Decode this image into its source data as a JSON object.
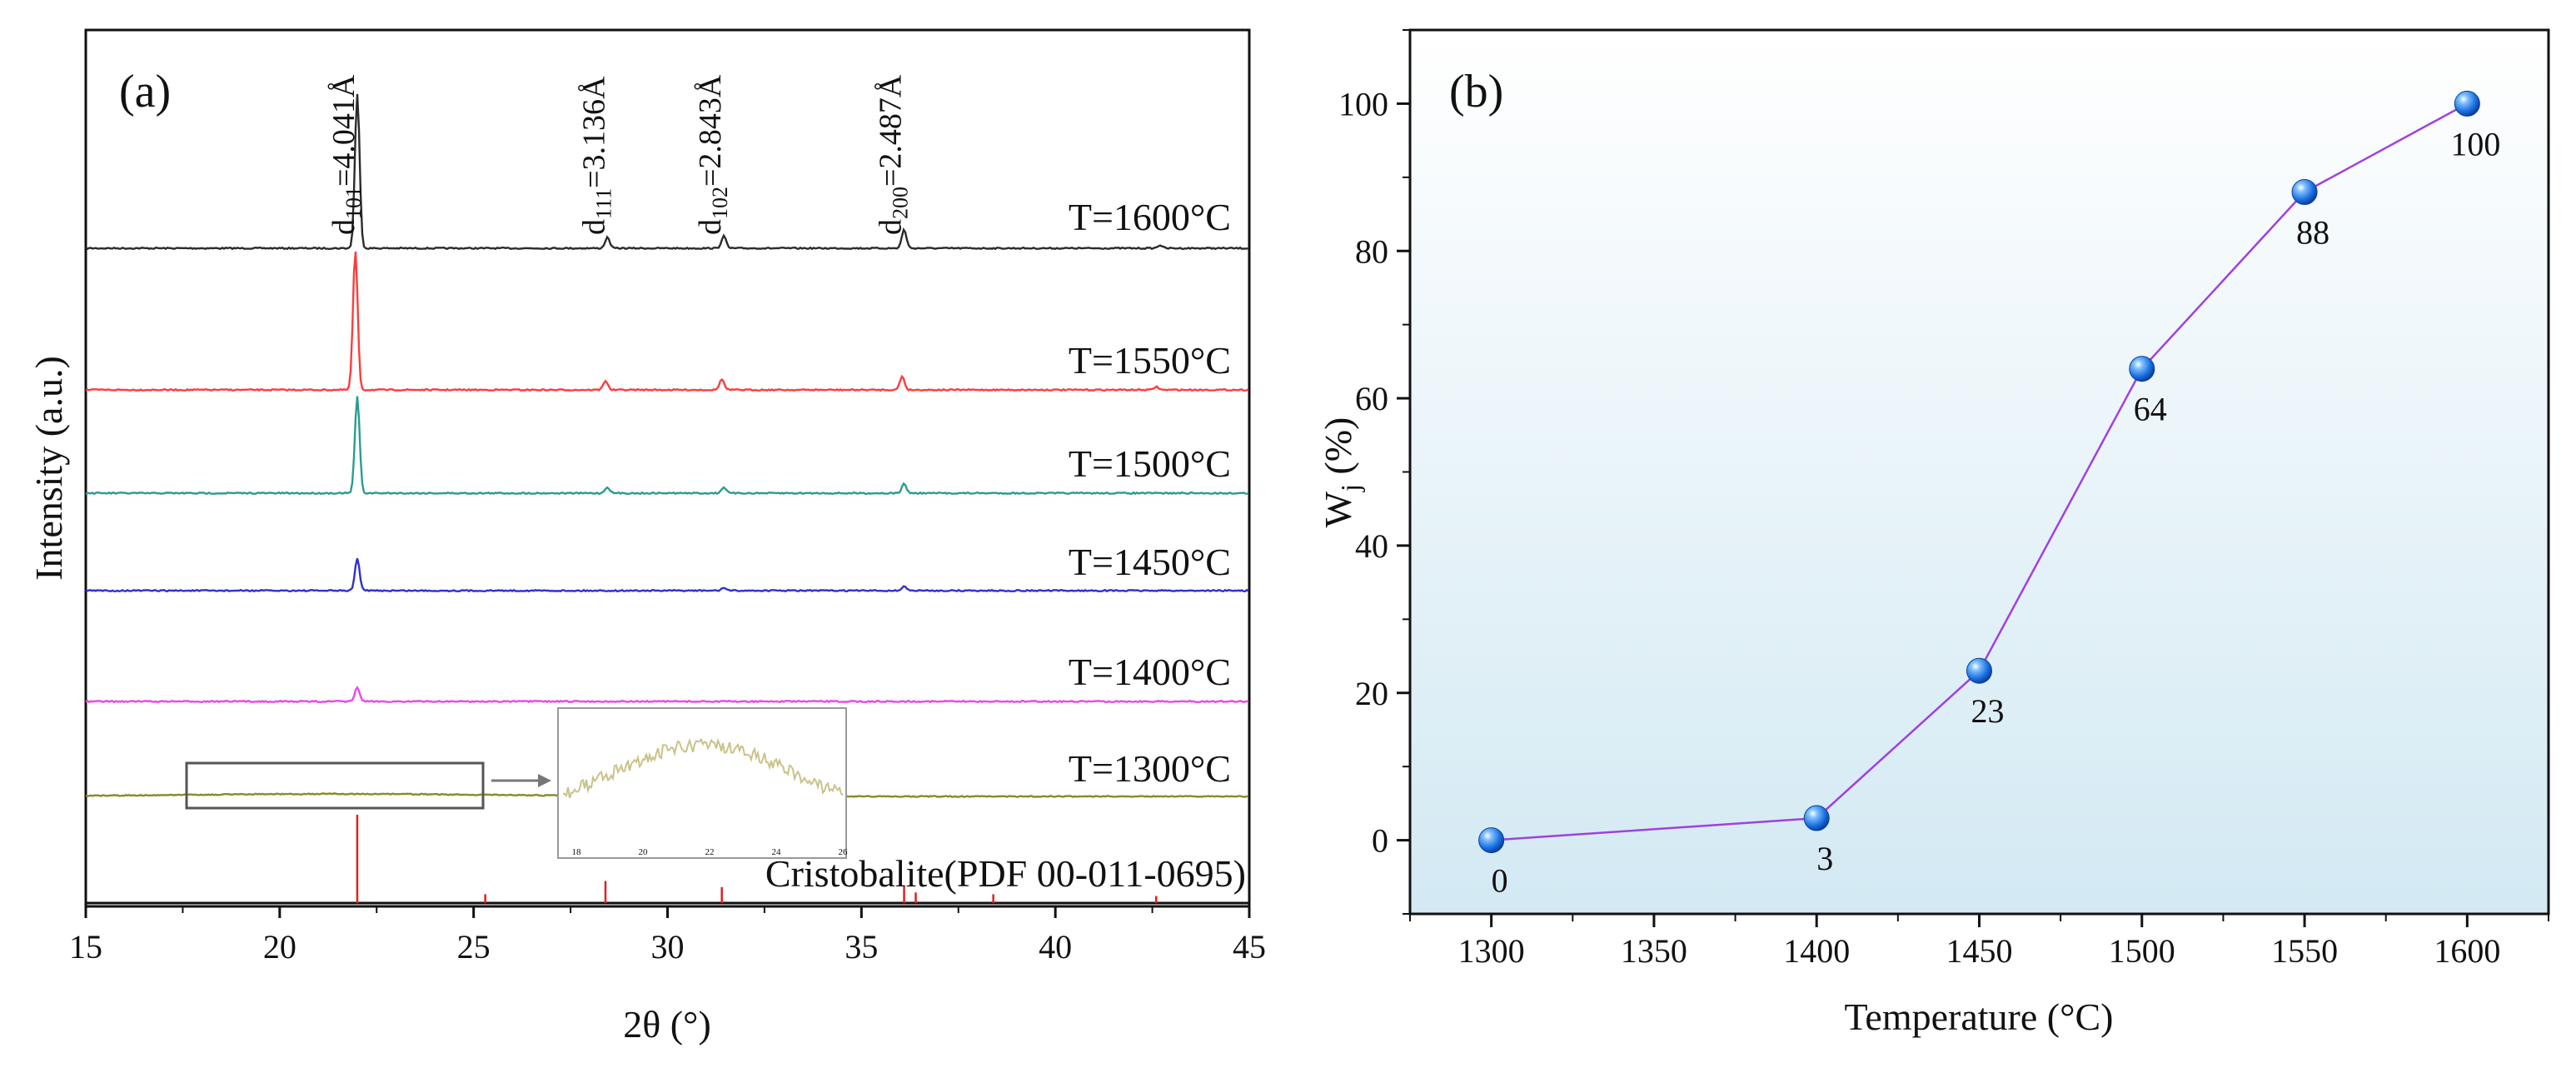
{
  "chart_data": [
    {
      "panel": "(a)",
      "type": "line",
      "xlabel": "2θ (°)",
      "ylabel": "Intensity (a.u.)",
      "xlim": [
        15,
        45
      ],
      "xticks": [
        15,
        20,
        25,
        30,
        35,
        40,
        45
      ],
      "series": [
        {
          "name": "T=1600°C",
          "color": "#2b2b2b",
          "peaks": [
            [
              22.0,
              1.0
            ],
            [
              28.45,
              0.07
            ],
            [
              31.45,
              0.08
            ],
            [
              36.1,
              0.12
            ],
            [
              42.7,
              0.02
            ]
          ]
        },
        {
          "name": "T=1550°C",
          "color": "#ff3b3b",
          "peaks": [
            [
              21.95,
              0.92
            ],
            [
              28.4,
              0.06
            ],
            [
              31.4,
              0.07
            ],
            [
              36.05,
              0.09
            ],
            [
              42.6,
              0.02
            ]
          ]
        },
        {
          "name": "T=1500°C",
          "color": "#2a9d8f",
          "peaks": [
            [
              22.0,
              0.64
            ],
            [
              28.45,
              0.04
            ],
            [
              31.45,
              0.04
            ],
            [
              36.1,
              0.06
            ]
          ]
        },
        {
          "name": "T=1450°C",
          "color": "#3030d0",
          "peaks": [
            [
              22.0,
              0.22
            ],
            [
              31.45,
              0.02
            ],
            [
              36.1,
              0.03
            ]
          ]
        },
        {
          "name": "T=1400°C",
          "color": "#ee44ee",
          "peaks": [
            [
              22.0,
              0.09
            ]
          ]
        },
        {
          "name": "T=1300°C",
          "color": "#8a8a2a",
          "peaks": []
        }
      ],
      "d_spacing_labels": [
        {
          "hkl": "101",
          "text": "=4.041Å",
          "x": 22.0
        },
        {
          "hkl": "111",
          "text": "=3.136Å",
          "x": 28.45
        },
        {
          "hkl": "102",
          "text": "=2.843Å",
          "x": 31.45
        },
        {
          "hkl": "200",
          "text": "=2.487Å",
          "x": 36.1
        }
      ],
      "reference": {
        "name": "Cristobalite(PDF 00-011-0695)",
        "color": "#e02020",
        "lines": [
          [
            22.0,
            1.0
          ],
          [
            25.3,
            0.1
          ],
          [
            28.4,
            0.25
          ],
          [
            31.4,
            0.18
          ],
          [
            36.1,
            0.2
          ],
          [
            36.4,
            0.12
          ],
          [
            38.4,
            0.1
          ],
          [
            42.6,
            0.08
          ]
        ]
      },
      "inset": {
        "xticks": [
          "18",
          "20",
          "22",
          "24",
          "26"
        ]
      }
    },
    {
      "panel": "(b)",
      "type": "line",
      "xlabel": "Temperature (°C)",
      "ylabel_main": "W",
      "ylabel_sub": "j",
      "ylabel_rest": " (%)",
      "xlim": [
        1275,
        1625
      ],
      "ylim": [
        -10,
        110
      ],
      "xticks": [
        1300,
        1350,
        1400,
        1450,
        1500,
        1550,
        1600
      ],
      "yticks": [
        0,
        20,
        40,
        60,
        80,
        100
      ],
      "x": [
        1300,
        1400,
        1450,
        1500,
        1550,
        1600
      ],
      "y": [
        0,
        3,
        23,
        64,
        88,
        100
      ],
      "point_labels": [
        "0",
        "3",
        "23",
        "64",
        "88",
        "100"
      ],
      "line_color": "#a040e0",
      "marker_color": "#1a6fe0"
    }
  ]
}
